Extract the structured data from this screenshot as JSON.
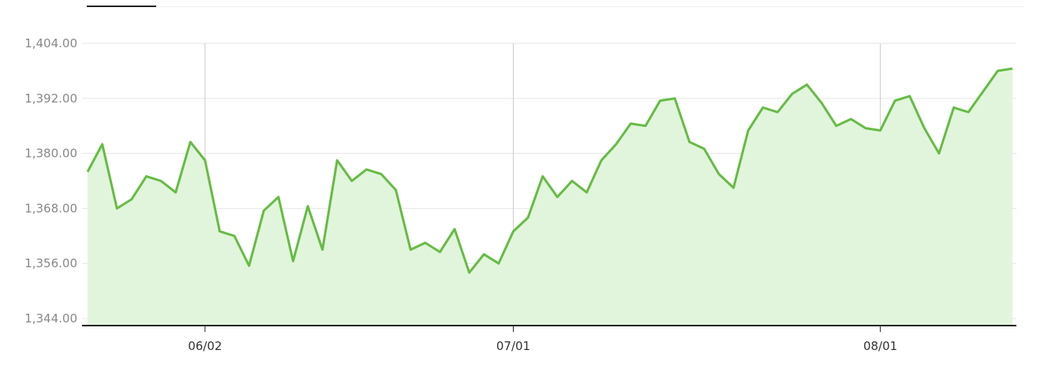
{
  "colors": {
    "line": "#66bb44",
    "area": "#e1f5dc",
    "grid": "#e6e6e6",
    "vgrid": "#cccccc",
    "axis": "#222222"
  },
  "chart_data": {
    "type": "area",
    "title": "",
    "xlabel": "",
    "ylabel": "",
    "ylim": [
      1344,
      1404
    ],
    "y_ticks": [
      "1,404.00",
      "1,392.00",
      "1,380.00",
      "1,368.00",
      "1,356.00",
      "1,344.00"
    ],
    "y_tick_values": [
      1404,
      1392,
      1380,
      1368,
      1356,
      1344
    ],
    "x_ticks": [
      "06/02",
      "07/01",
      "08/01"
    ],
    "x_tick_index": [
      8,
      29,
      54
    ],
    "grid": true,
    "legend": "none",
    "values": [
      1376.0,
      1382.0,
      1368.0,
      1370.0,
      1375.0,
      1374.0,
      1371.5,
      1382.5,
      1378.5,
      1363.0,
      1362.0,
      1355.5,
      1367.5,
      1370.5,
      1356.5,
      1368.5,
      1359.0,
      1378.5,
      1374.0,
      1376.5,
      1375.5,
      1372.0,
      1359.0,
      1360.5,
      1358.5,
      1363.5,
      1354.0,
      1358.0,
      1356.0,
      1363.0,
      1366.0,
      1375.0,
      1370.5,
      1374.0,
      1371.5,
      1378.5,
      1382.0,
      1386.5,
      1386.0,
      1391.5,
      1392.0,
      1382.5,
      1381.0,
      1375.5,
      1372.5,
      1385.0,
      1390.0,
      1389.0,
      1393.0,
      1395.0,
      1391.0,
      1386.0,
      1387.5,
      1385.5,
      1385.0,
      1391.5,
      1392.5,
      1385.5,
      1380.0,
      1390.0,
      1389.0,
      1393.5,
      1398.0,
      1398.5
    ]
  }
}
